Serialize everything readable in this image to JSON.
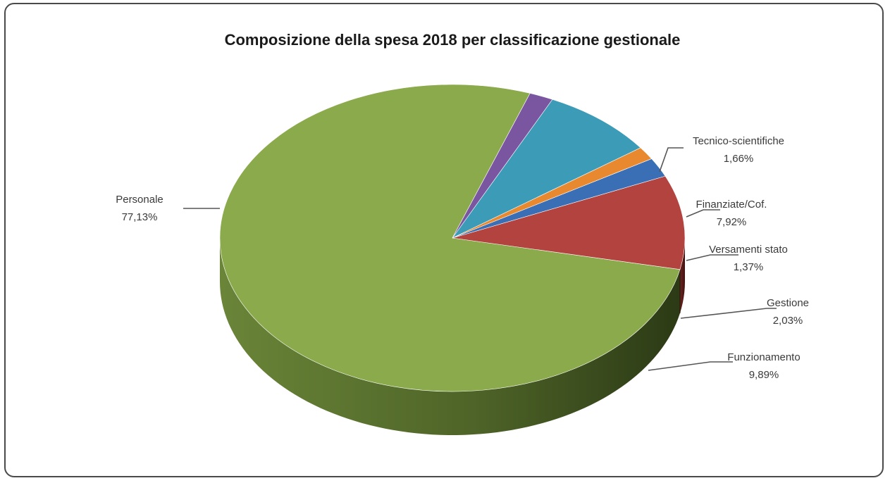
{
  "chart_data": {
    "type": "pie",
    "title": "Composizione della spesa 2018 per classificazione gestionale",
    "slices": [
      {
        "label": "Personale",
        "value_label": "77,13%",
        "value": 77.13,
        "color": "#8aaa4b"
      },
      {
        "label": "Tecnico-scientifiche",
        "value_label": "1,66%",
        "value": 1.66,
        "color": "#7a55a0"
      },
      {
        "label": "Finanziate/Cof.",
        "value_label": "7,92%",
        "value": 7.92,
        "color": "#3c9cb7"
      },
      {
        "label": "Versamenti stato",
        "value_label": "1,37%",
        "value": 1.37,
        "color": "#e8892f"
      },
      {
        "label": "Gestione",
        "value_label": "2,03%",
        "value": 2.03,
        "color": "#3a6fb5"
      },
      {
        "label": "Funzionamento",
        "value_label": "9,89%",
        "value": 9.89,
        "color": "#b2433f"
      }
    ],
    "style": "3d-pie",
    "legend": "none",
    "data_labels": "outside-with-leader-lines"
  }
}
